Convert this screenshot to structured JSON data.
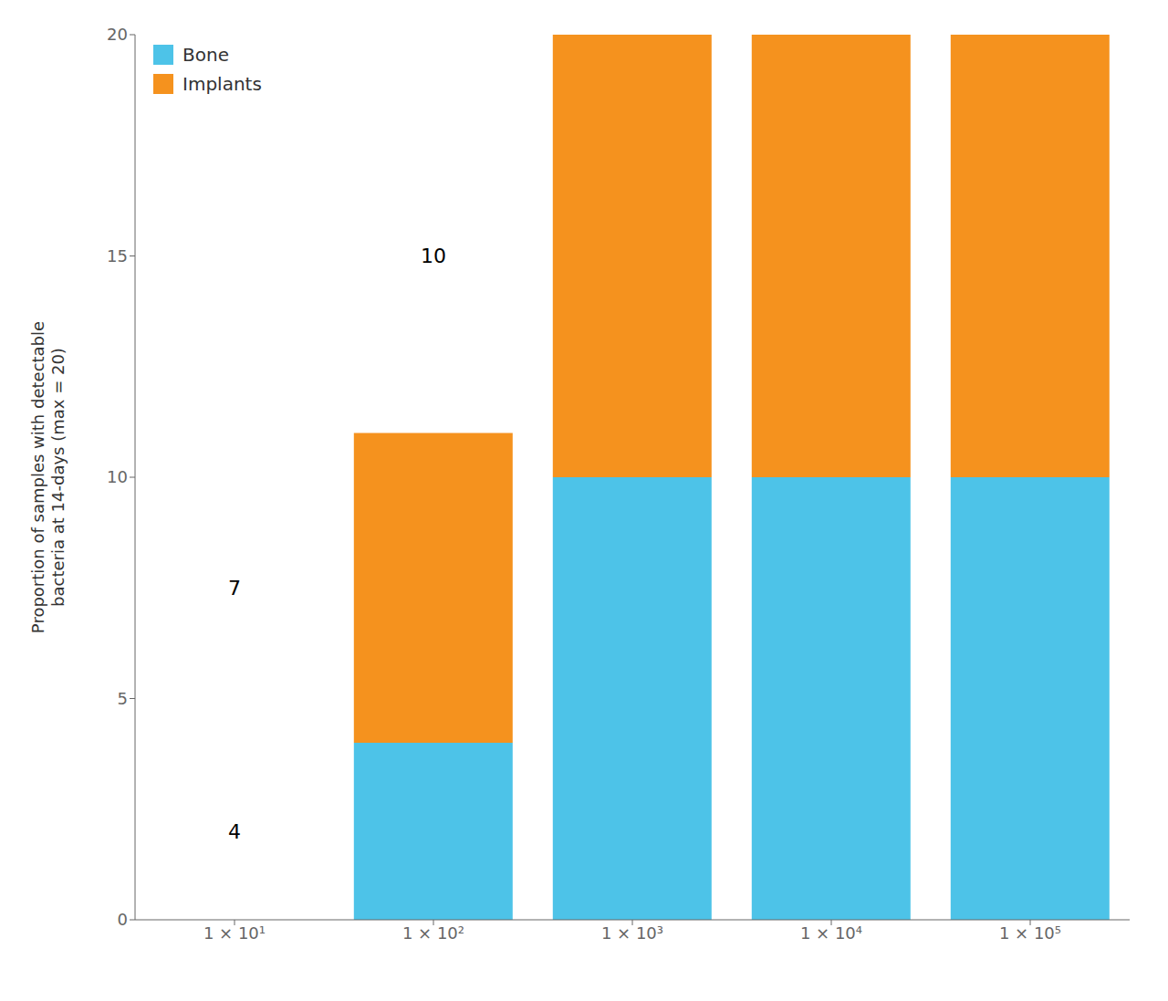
{
  "chart_data": {
    "type": "bar",
    "stacked": true,
    "categories": [
      "1 × 10¹",
      "1 × 10²",
      "1 × 10³",
      "1 × 10⁴",
      "1 × 10⁵"
    ],
    "series": [
      {
        "name": "Bone",
        "color": "#4DC3E8",
        "values": [
          0,
          4,
          10,
          10,
          10
        ]
      },
      {
        "name": "Implants",
        "color": "#F5921E",
        "values": [
          0,
          7,
          10,
          10,
          10
        ]
      }
    ],
    "ylabel": "Proportion of samples with detectable\nbacteria at 14-days (max = 20)",
    "ylim": [
      0,
      20
    ],
    "yticks": [
      0,
      5,
      10,
      15,
      20
    ],
    "annotations": [
      {
        "text": "4",
        "x": "1 × 10¹",
        "y": 2
      },
      {
        "text": "7",
        "x": "1 × 10¹",
        "y": 7.5
      },
      {
        "text": "10",
        "x": "1 × 10²",
        "y": 15
      }
    ],
    "legend": "top-left",
    "grid": false
  }
}
